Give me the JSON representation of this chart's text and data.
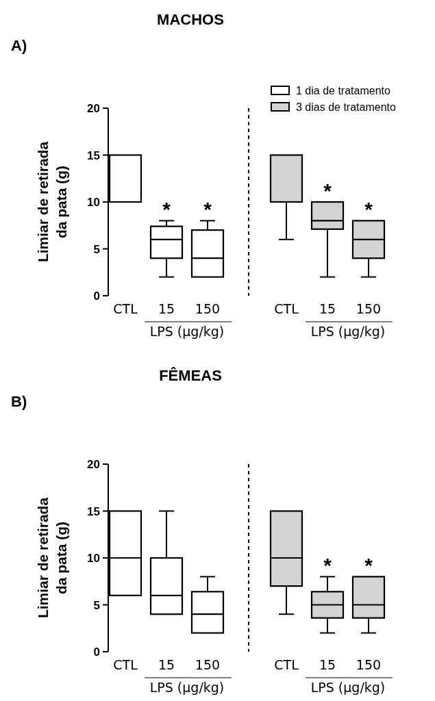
{
  "chart_data": [
    {
      "type": "box",
      "title": "MACHOS",
      "ylabel": "Limiar de retirada da pata  (g)",
      "categories": [
        "CTL",
        "15",
        "150"
      ],
      "ylim": [
        0,
        20
      ],
      "yticks": [
        0,
        5,
        10,
        15,
        20
      ],
      "legend": "top right",
      "series": [
        {
          "name": "1 dia de tratamento",
          "color": "#ffffff",
          "boxes": [
            {
              "low": 10,
              "q1": 10,
              "median": 10,
              "q3": 15,
              "high": 15
            },
            {
              "low": 2,
              "q1": 4,
              "median": 6,
              "q3": 7.4,
              "high": 8
            },
            {
              "low": 2,
              "q1": 2,
              "median": 4,
              "q3": 7,
              "high": 8
            }
          ]
        }
      ],
      "annotations": [
        "A)",
        "LPS (μg/kg)",
        {
          "text": "*",
          "x": "15",
          "y": 8
        },
        {
          "text": "*",
          "x": "150",
          "y": 8
        }
      ]
    },
    {
      "type": "box",
      "categories": [
        "CTL",
        "15",
        "150"
      ],
      "ylim": [
        0,
        20
      ],
      "tick_labels": "x",
      "legend": "top right",
      "series": [
        {
          "name": "3 dias de tratamento",
          "color": "#d3d3d3",
          "boxes": [
            {
              "low": 6,
              "q1": 10,
              "median": 10,
              "q3": 15,
              "high": 15
            },
            {
              "low": 2,
              "q1": 7.1,
              "median": 8,
              "q3": 10,
              "high": 10
            },
            {
              "low": 2,
              "q1": 4,
              "median": 6,
              "q3": 8,
              "high": 8
            }
          ]
        }
      ],
      "annotations": [
        "LPS (μg/kg)",
        {
          "text": "*",
          "x": "15",
          "y": 10
        },
        {
          "text": "*",
          "x": "150",
          "y": 8
        }
      ]
    },
    {
      "type": "box",
      "title": "FÊMEAS",
      "ylabel": "Limiar de retirada da pata  (g)",
      "categories": [
        "CTL",
        "15",
        "150"
      ],
      "ylim": [
        0,
        20
      ],
      "yticks": [
        0,
        5,
        10,
        15,
        20
      ],
      "series": [
        {
          "color": "#ffffff",
          "boxes": [
            {
              "low": 6,
              "q1": 6,
              "median": 10,
              "q3": 15,
              "high": 15
            },
            {
              "low": 4,
              "q1": 4,
              "median": 6,
              "q3": 10,
              "high": 15
            },
            {
              "low": 2,
              "q1": 2,
              "median": 4,
              "q3": 6.4,
              "high": 8
            }
          ]
        }
      ],
      "annotations": [
        "B)",
        "LPS (μg/kg)"
      ]
    },
    {
      "type": "box",
      "categories": [
        "CTL",
        "15",
        "150"
      ],
      "ylim": [
        0,
        20
      ],
      "tick_labels": "x",
      "series": [
        {
          "color": "#d3d3d3",
          "boxes": [
            {
              "low": 4,
              "q1": 7,
              "median": 10,
              "q3": 15,
              "high": 15
            },
            {
              "low": 2,
              "q1": 3.6,
              "median": 5,
              "q3": 6.4,
              "high": 8
            },
            {
              "low": 2,
              "q1": 3.6,
              "median": 5,
              "q3": 8,
              "high": 8
            }
          ]
        }
      ],
      "annotations": [
        "LPS (μg/kg)",
        {
          "text": "*",
          "x": "15",
          "y": 8
        },
        {
          "text": "*",
          "x": "150",
          "y": 8
        }
      ]
    }
  ]
}
